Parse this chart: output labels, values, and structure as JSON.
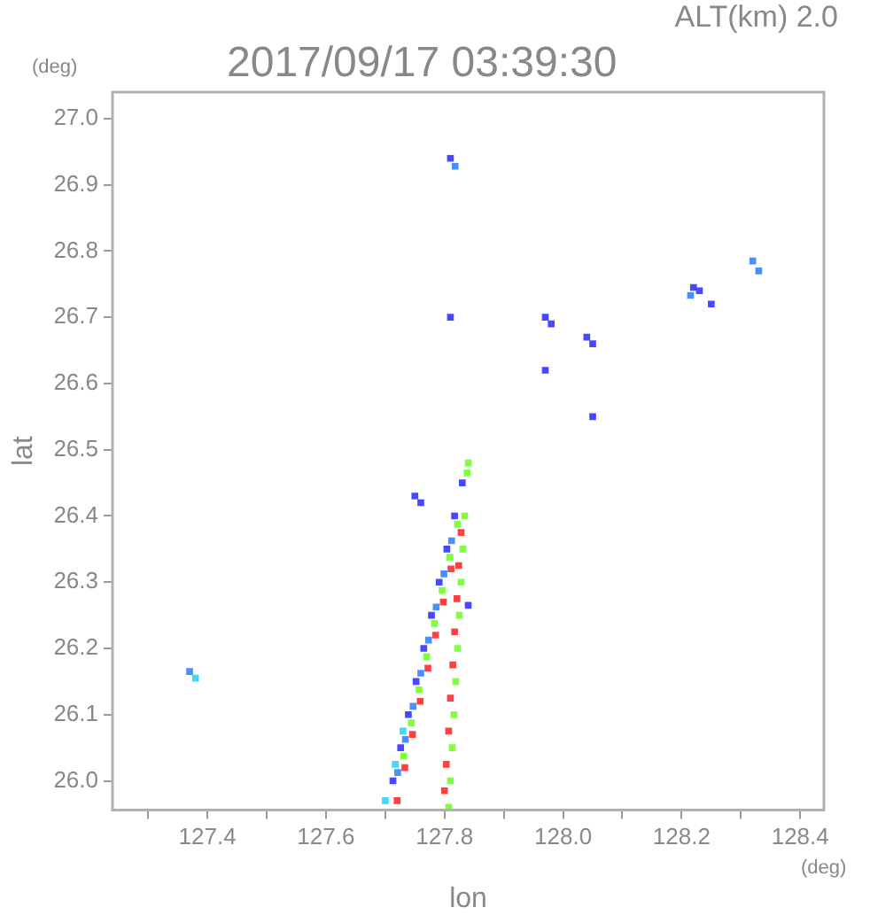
{
  "chart_data": {
    "type": "scatter",
    "title": "2017/09/17 03:39:30",
    "subtitle": "ALT(km) 2.0",
    "xlabel": "lon",
    "ylabel": "lat",
    "annotations": [
      "(deg)",
      "(deg)"
    ],
    "xlim": [
      127.24,
      128.44
    ],
    "ylim": [
      25.956,
      27.04
    ],
    "xticks": [
      {
        "value": 127.3,
        "label": null
      },
      127.4,
      {
        "value": 127.5,
        "label": null
      },
      127.6,
      {
        "value": 127.7,
        "label": null
      },
      127.8,
      {
        "value": 127.9,
        "label": null
      },
      {
        "value": 128,
        "label": "128.0"
      },
      {
        "value": 128.1,
        "label": null
      },
      128.2,
      {
        "value": 128.3,
        "label": null
      },
      128.4
    ],
    "yticks": [
      {
        "value": 26,
        "label": "26.0"
      },
      26.1,
      26.2,
      26.3,
      26.4,
      26.5,
      26.6,
      26.7,
      26.8,
      26.9,
      {
        "value": 27,
        "label": "27.0"
      }
    ],
    "grid": false,
    "legend": false,
    "marker": "square",
    "series": [
      {
        "color": "#4848ff",
        "x": [
          127.81,
          128.22,
          128.23,
          128.25,
          127.81,
          127.97,
          127.98,
          128.04,
          128.05,
          127.97,
          128.05,
          127.75,
          127.76,
          127.84,
          127.713,
          127.726,
          127.739,
          127.752,
          127.765,
          127.778,
          127.791,
          127.804,
          127.817,
          127.83
        ],
        "values": [
          26.94,
          26.745,
          26.74,
          26.72,
          26.7,
          26.7,
          26.69,
          26.67,
          26.66,
          26.62,
          26.55,
          26.43,
          26.42,
          26.265,
          26.0,
          26.05,
          26.1,
          26.15,
          26.2,
          26.25,
          26.3,
          26.35,
          26.4,
          26.45
        ]
      },
      {
        "color": "#4890ff",
        "x": [
          127.818,
          128.215,
          128.32,
          128.33,
          127.37,
          127.721,
          127.734,
          127.747,
          127.76,
          127.773,
          127.786,
          127.799,
          127.812
        ],
        "values": [
          26.928,
          26.733,
          26.785,
          26.77,
          26.165,
          26.0125,
          26.0625,
          26.1125,
          26.1625,
          26.2125,
          26.2625,
          26.3125,
          26.3625
        ]
      },
      {
        "color": "#40d8ff",
        "x": [
          127.38,
          127.7,
          127.717,
          127.73
        ],
        "values": [
          26.155,
          25.97,
          26.025,
          26.075
        ]
      },
      {
        "color": "#80ff40",
        "x": [
          127.807,
          127.81,
          127.813,
          127.816,
          127.819,
          127.822,
          127.825,
          127.828,
          127.831,
          127.834,
          127.838,
          127.84,
          127.731,
          127.744,
          127.757,
          127.77,
          127.783,
          127.796,
          127.809,
          127.822
        ],
        "values": [
          25.96,
          26.0,
          26.05,
          26.1,
          26.15,
          26.2,
          26.25,
          26.3,
          26.35,
          26.4,
          26.465,
          26.48,
          26.0375,
          26.0875,
          26.1375,
          26.1875,
          26.2375,
          26.2875,
          26.3375,
          26.3875
        ]
      },
      {
        "color": "#ff4040",
        "x": [
          127.72,
          127.733,
          127.746,
          127.759,
          127.772,
          127.785,
          127.798,
          127.811,
          127.8,
          127.803,
          127.807,
          127.81,
          127.814,
          127.817,
          127.821,
          127.824,
          127.828
        ],
        "values": [
          25.97,
          26.02,
          26.07,
          26.12,
          26.17,
          26.22,
          26.27,
          26.32,
          25.985,
          26.025,
          26.075,
          26.125,
          26.175,
          26.225,
          26.275,
          26.325,
          26.375
        ]
      }
    ]
  }
}
